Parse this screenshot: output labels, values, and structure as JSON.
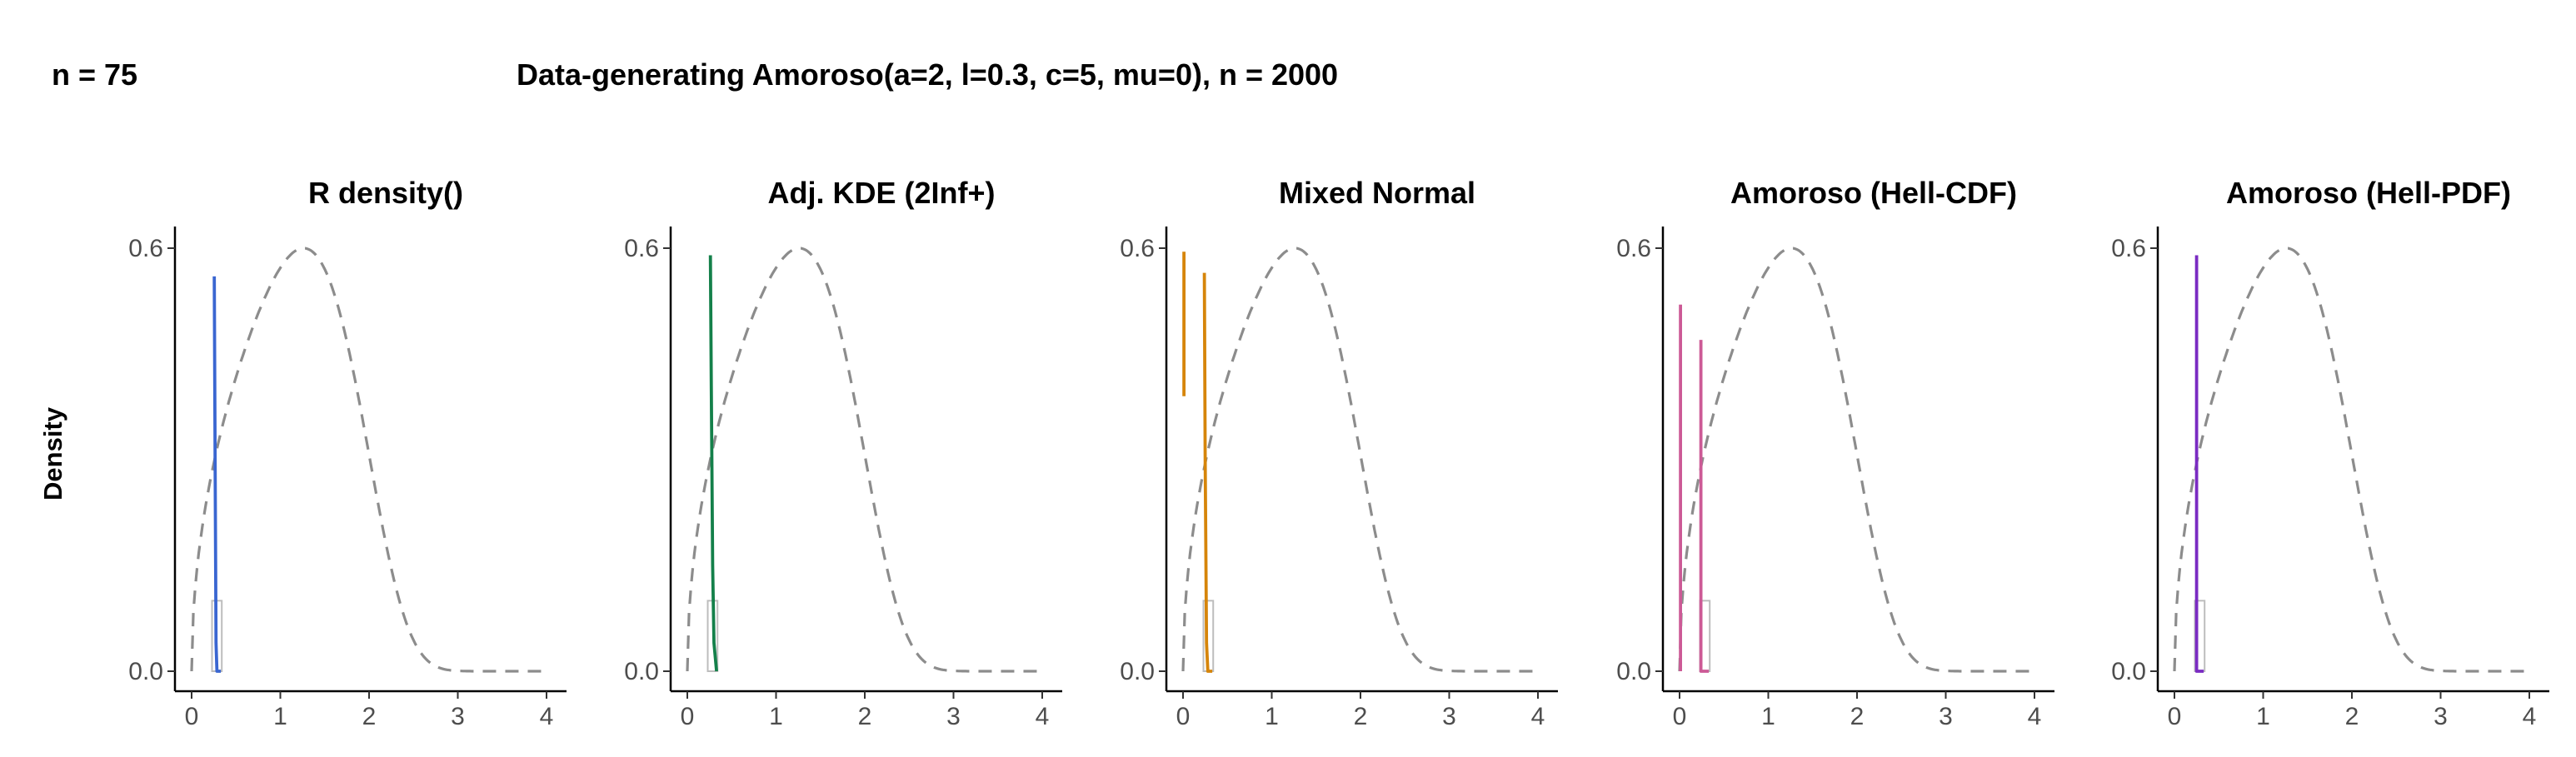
{
  "header": {
    "sample_label": "n = 75",
    "title": "Data-generating Amoroso(a=2, l=0.3, c=5, mu=0), n = 2000"
  },
  "y_axis_label": "Density",
  "colors": {
    "reference": "#8c8c8c",
    "rug": "#bdbdbd",
    "axis": "#000000"
  },
  "chart_data": [
    {
      "type": "line",
      "title": "R density()",
      "color": "#3a66d1",
      "xlim": [
        0,
        4
      ],
      "ylim": [
        0,
        0.6
      ],
      "x_ticks": [
        "0",
        "1",
        "2",
        "3",
        "4"
      ],
      "y_ticks": [
        "0.0",
        "0.6"
      ],
      "series": [
        {
          "name": "estimate",
          "segments": [
            [
              [
                0.255,
                0.56
              ],
              [
                0.265,
                0.3
              ],
              [
                0.275,
                0.04
              ],
              [
                0.285,
                0.0
              ],
              [
                0.33,
                0.0
              ]
            ]
          ]
        },
        {
          "name": "reference",
          "style": "dashed"
        }
      ],
      "rug": {
        "x0": 0.23,
        "x1": 0.34,
        "ymax": 0.1
      }
    },
    {
      "type": "line",
      "title": "Adj. KDE (2Inf+)",
      "color": "#14804a",
      "xlim": [
        0,
        4
      ],
      "ylim": [
        0,
        0.6
      ],
      "x_ticks": [
        "0",
        "1",
        "2",
        "3",
        "4"
      ],
      "y_ticks": [
        "0.0",
        "0.6"
      ],
      "series": [
        {
          "name": "estimate",
          "segments": [
            [
              [
                0.26,
                0.59
              ],
              [
                0.27,
                0.4
              ],
              [
                0.285,
                0.15
              ],
              [
                0.3,
                0.04
              ],
              [
                0.33,
                0.0
              ]
            ]
          ]
        },
        {
          "name": "reference",
          "style": "dashed"
        }
      ],
      "rug": {
        "x0": 0.23,
        "x1": 0.34,
        "ymax": 0.1
      }
    },
    {
      "type": "line",
      "title": "Mixed Normal",
      "color": "#d6850a",
      "xlim": [
        0,
        4
      ],
      "ylim": [
        0,
        0.6
      ],
      "x_ticks": [
        "0",
        "1",
        "2",
        "3",
        "4"
      ],
      "y_ticks": [
        "0.0",
        "0.6"
      ],
      "series": [
        {
          "name": "estimate",
          "segments": [
            [
              [
                0.01,
                0.595
              ],
              [
                0.01,
                0.39
              ]
            ],
            [
              [
                0.24,
                0.565
              ],
              [
                0.25,
                0.3
              ],
              [
                0.265,
                0.04
              ],
              [
                0.28,
                0.0
              ],
              [
                0.33,
                0.0
              ]
            ]
          ]
        },
        {
          "name": "reference",
          "style": "dashed"
        }
      ],
      "rug": {
        "x0": 0.23,
        "x1": 0.34,
        "ymax": 0.1
      }
    },
    {
      "type": "line",
      "title": "Amoroso (Hell-CDF)",
      "color": "#cc5a96",
      "xlim": [
        0,
        4
      ],
      "ylim": [
        0,
        0.6
      ],
      "x_ticks": [
        "0",
        "1",
        "2",
        "3",
        "4"
      ],
      "y_ticks": [
        "0.0",
        "0.6"
      ],
      "series": [
        {
          "name": "estimate",
          "segments": [
            [
              [
                0.01,
                0.52
              ],
              [
                0.01,
                0.0
              ]
            ],
            [
              [
                0.24,
                0.47
              ],
              [
                0.24,
                0.0
              ],
              [
                0.33,
                0.0
              ]
            ]
          ]
        },
        {
          "name": "reference",
          "style": "dashed"
        }
      ],
      "rug": {
        "x0": 0.23,
        "x1": 0.34,
        "ymax": 0.1
      }
    },
    {
      "type": "line",
      "title": "Amoroso (Hell-PDF)",
      "color": "#7a2bc2",
      "xlim": [
        0,
        4
      ],
      "ylim": [
        0,
        0.6
      ],
      "x_ticks": [
        "0",
        "1",
        "2",
        "3",
        "4"
      ],
      "y_ticks": [
        "0.0",
        "0.6"
      ],
      "series": [
        {
          "name": "estimate",
          "segments": [
            [
              [
                0.25,
                0.59
              ],
              [
                0.25,
                0.0
              ],
              [
                0.33,
                0.0
              ]
            ]
          ]
        },
        {
          "name": "reference",
          "style": "dashed"
        }
      ],
      "rug": {
        "x0": 0.23,
        "x1": 0.34,
        "ymax": 0.1
      }
    }
  ]
}
